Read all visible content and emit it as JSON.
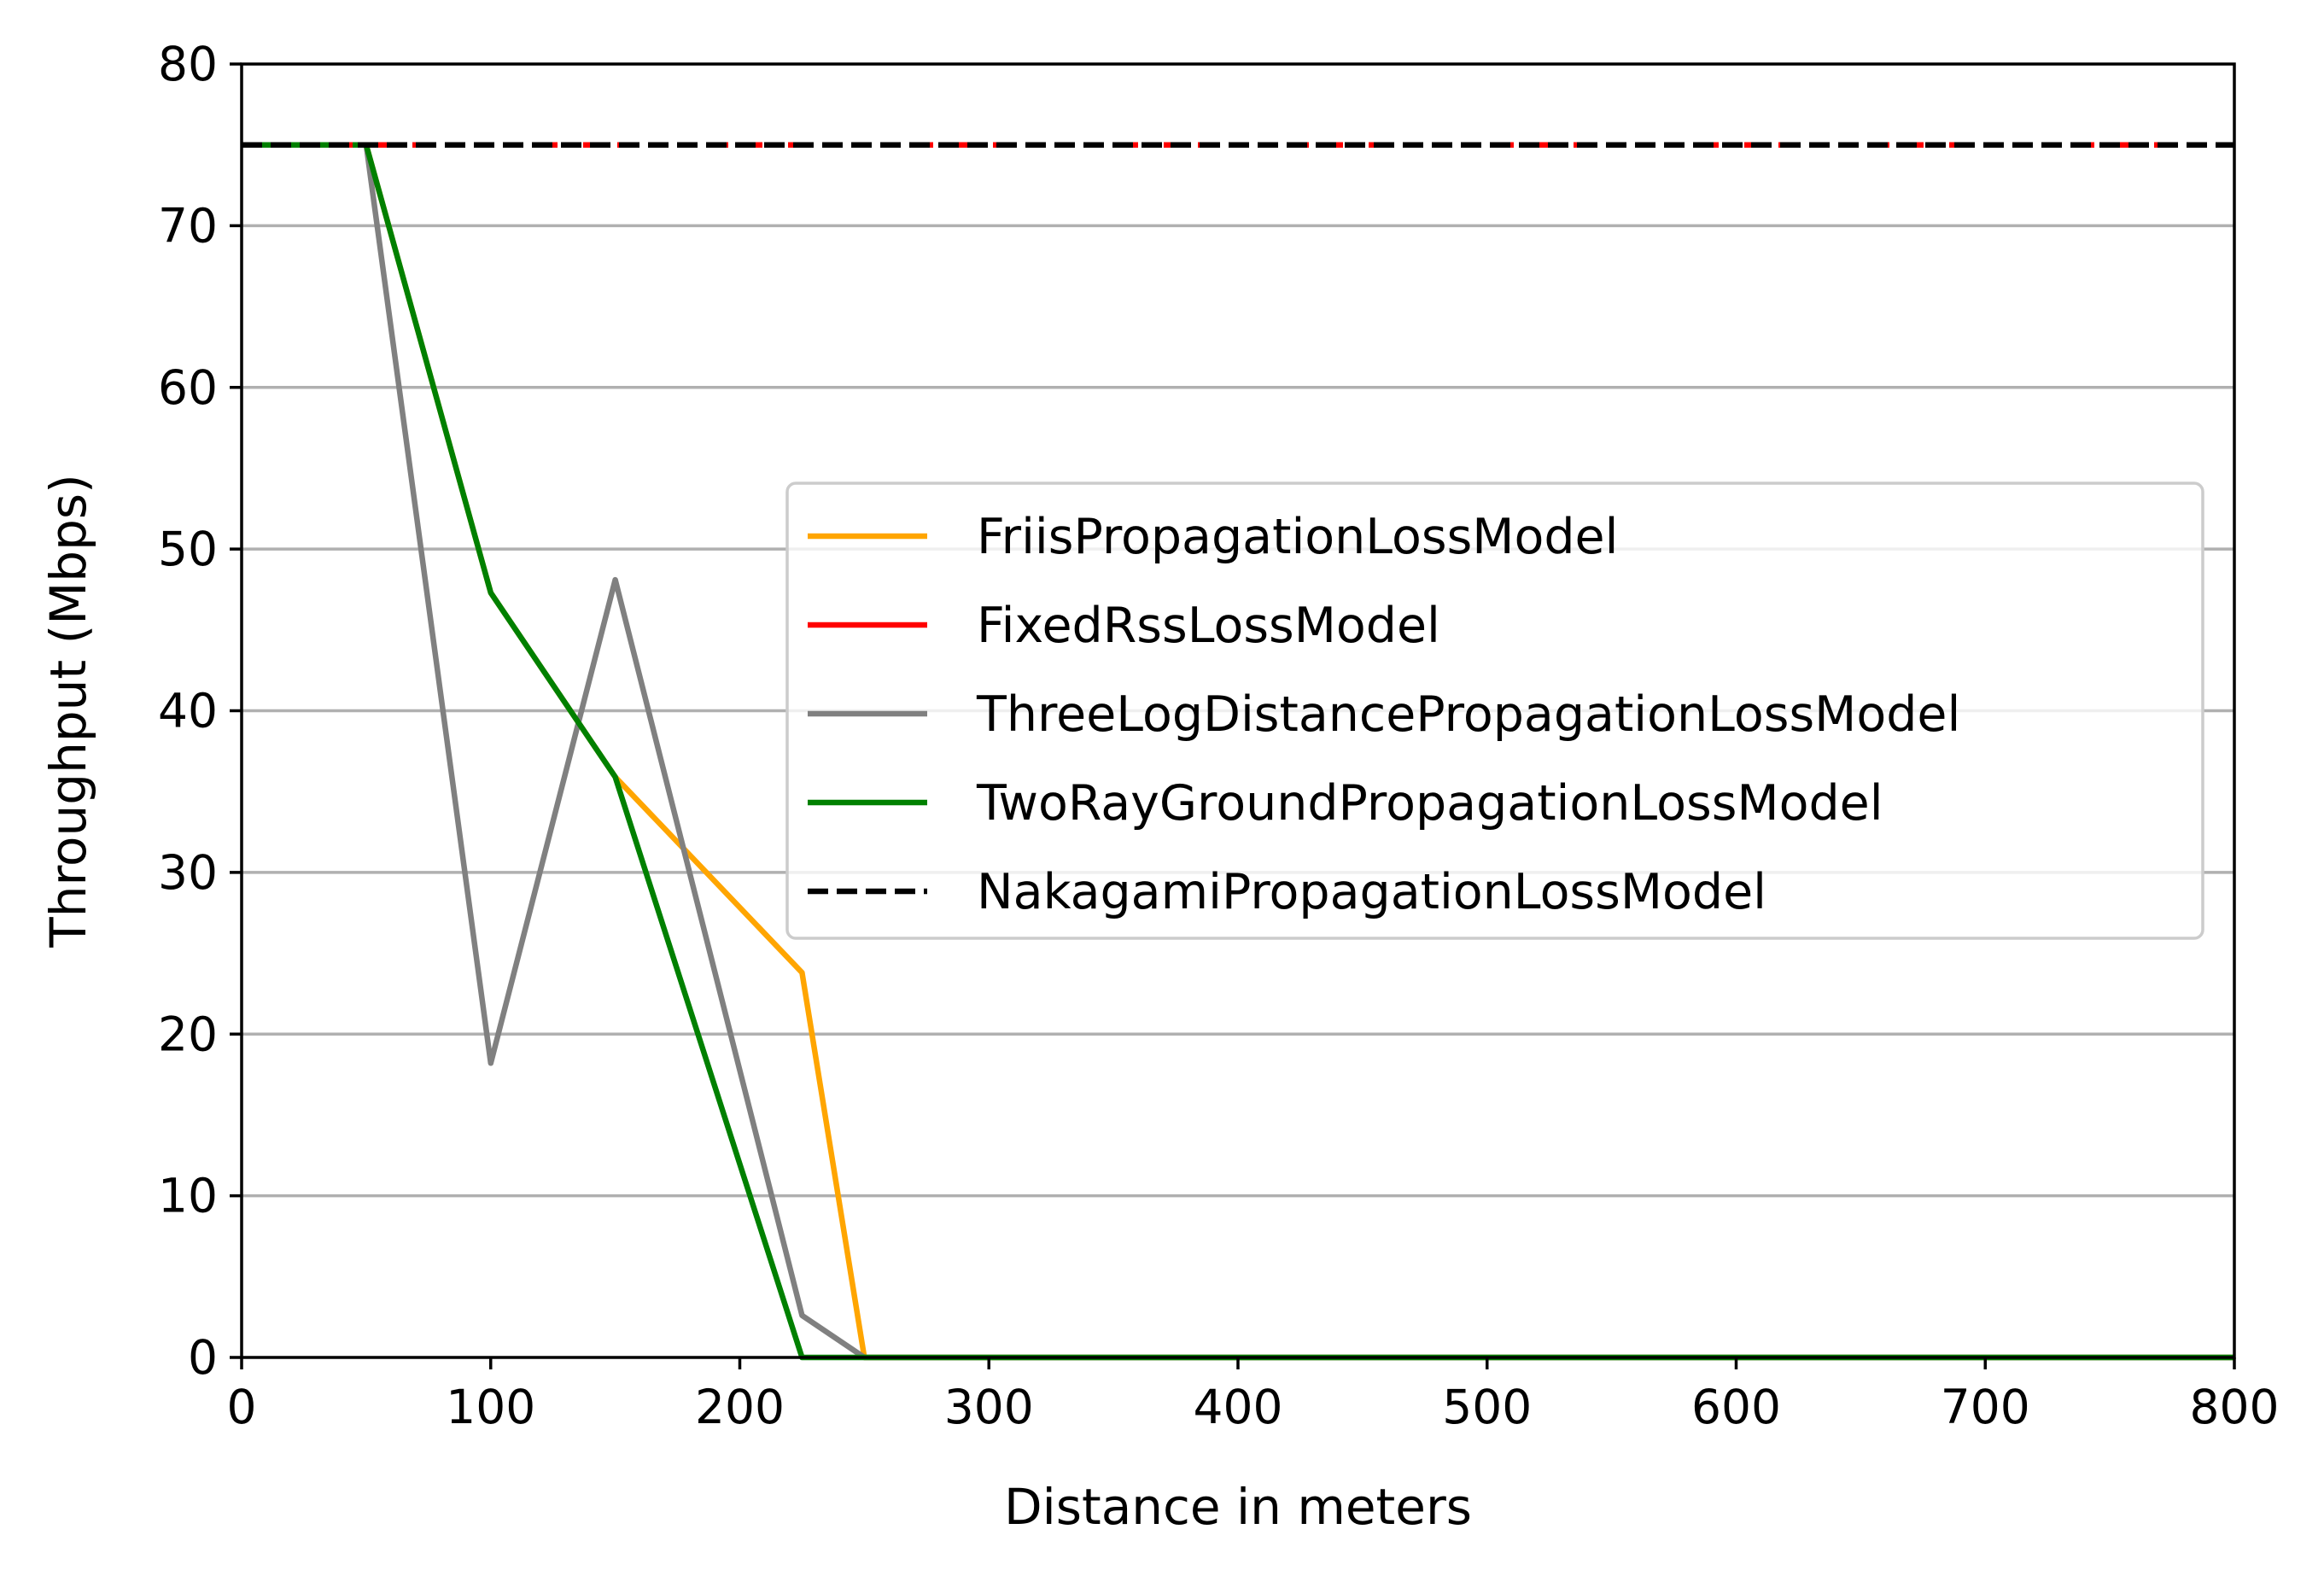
{
  "chart_data": {
    "type": "line",
    "title": "",
    "xlabel": "Distance in meters",
    "ylabel": "Throughput (Mbps)",
    "xlim": [
      0,
      800
    ],
    "ylim": [
      0,
      80
    ],
    "x_ticks": [
      "0",
      "100",
      "200",
      "300",
      "400",
      "500",
      "600",
      "700",
      "800"
    ],
    "y_ticks": [
      "0",
      "10",
      "20",
      "30",
      "40",
      "50",
      "60",
      "70",
      "80"
    ],
    "grid": "horizontal",
    "legend_position": "center-right",
    "series": [
      {
        "name": "FriisPropagationLossModel",
        "color": "#ffa500",
        "dash": "solid",
        "x": [
          0,
          50,
          100,
          150,
          225,
          250,
          300,
          400,
          500,
          600,
          700,
          800
        ],
        "y": [
          75,
          75,
          47.3,
          35.9,
          23.8,
          0,
          0,
          0,
          0,
          0,
          0,
          0
        ]
      },
      {
        "name": "FixedRssLossModel",
        "color": "#ff0000",
        "dash": "solid",
        "x": [
          0,
          800
        ],
        "y": [
          75,
          75
        ]
      },
      {
        "name": "ThreeLogDistancePropagationLossModel",
        "color": "#808080",
        "dash": "solid",
        "x": [
          0,
          50,
          100,
          150,
          225,
          250,
          300,
          400,
          500,
          600,
          700,
          800
        ],
        "y": [
          75,
          75,
          18.2,
          48.1,
          2.6,
          0,
          0,
          0,
          0,
          0,
          0,
          0
        ]
      },
      {
        "name": "TwoRayGroundPropagationLossModel",
        "color": "#008000",
        "dash": "solid",
        "x": [
          0,
          50,
          100,
          150,
          225,
          250,
          300,
          400,
          500,
          600,
          700,
          800
        ],
        "y": [
          75,
          75,
          47.3,
          35.9,
          0,
          0,
          0,
          0,
          0,
          0,
          0,
          0
        ]
      },
      {
        "name": "NakagamiPropagationLossModel",
        "color": "#000000",
        "dash": "dashed",
        "x": [
          0,
          800
        ],
        "y": [
          75,
          75
        ]
      }
    ]
  }
}
